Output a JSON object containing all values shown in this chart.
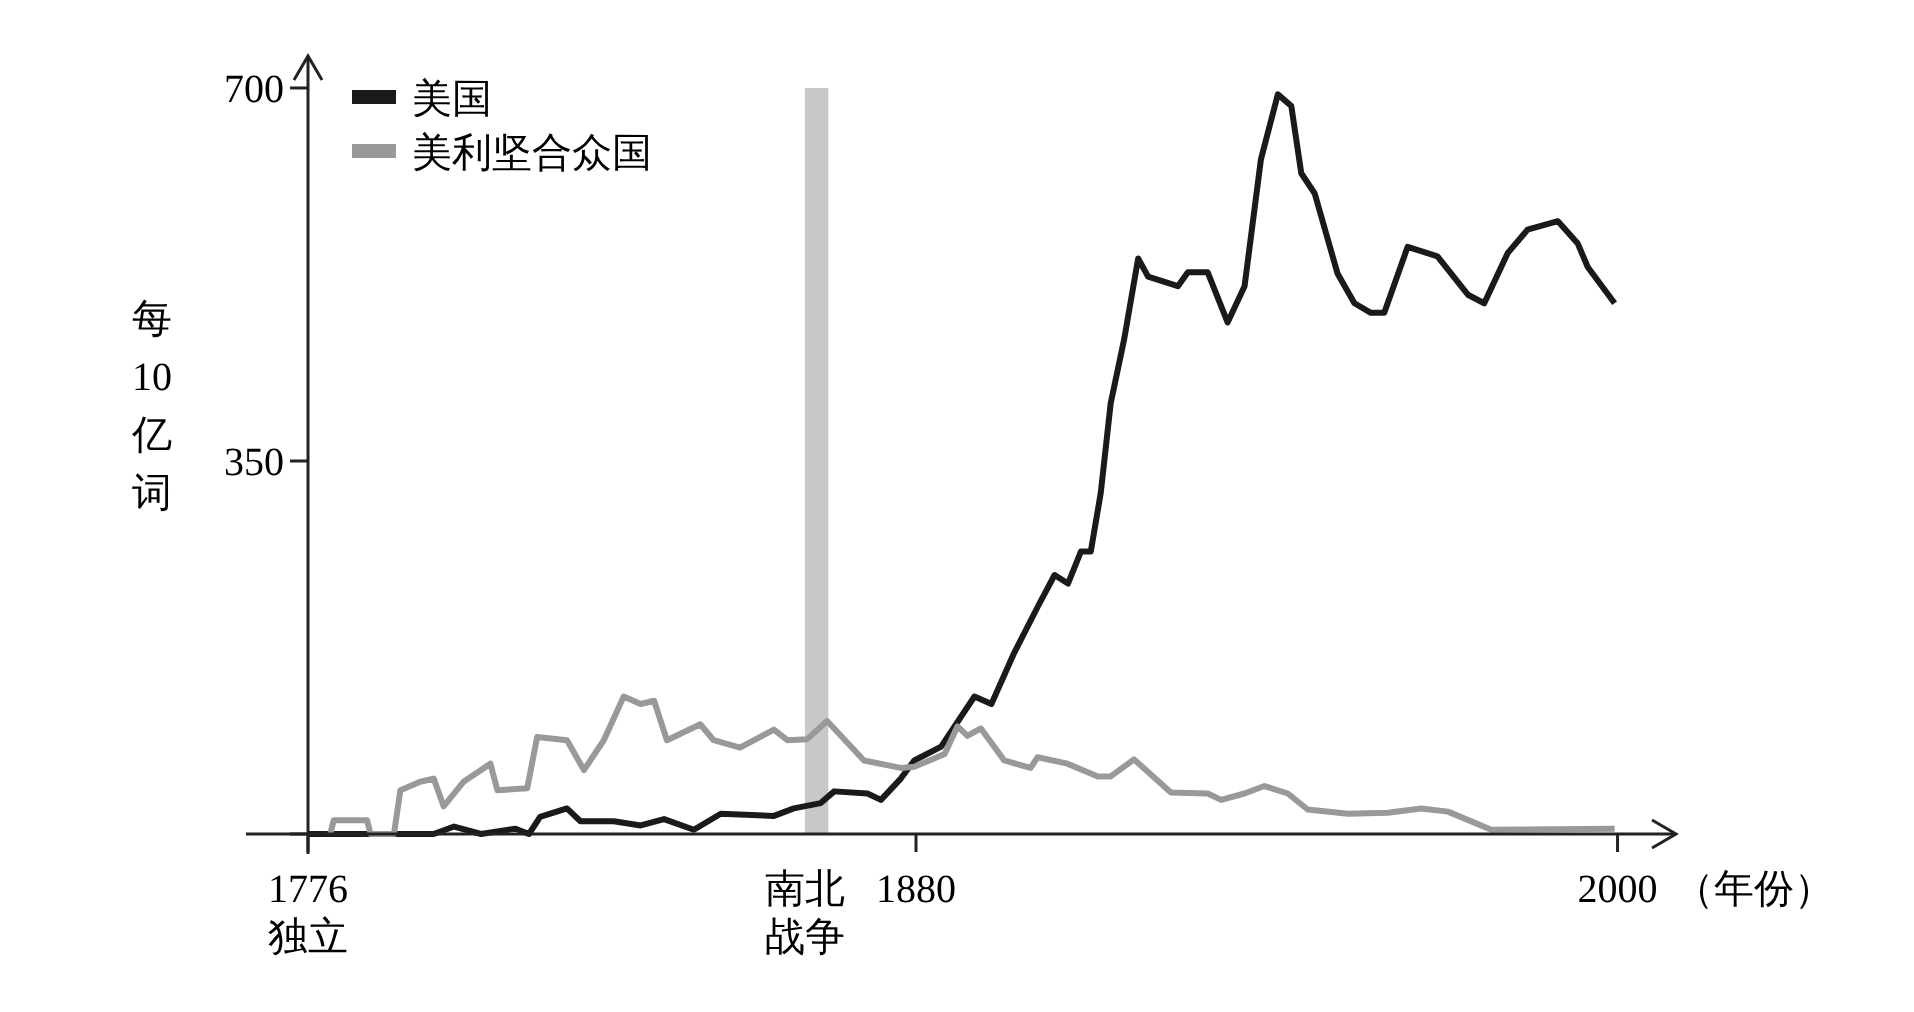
{
  "chart_data": {
    "type": "line",
    "ylabel": "每 10 亿词",
    "xlabel": "（年份）",
    "xlim": [
      1776,
      2010
    ],
    "ylim": [
      0,
      730
    ],
    "xticks": [
      {
        "value": 1776,
        "label": "1776\n独立"
      },
      1880,
      2000
    ],
    "yticks": [
      {
        "value": 0,
        "label": null
      },
      350,
      700
    ],
    "legend": "top left",
    "grid": false,
    "marker": "none",
    "line_style": "solid",
    "bands": [
      {
        "axis": "x",
        "from": 1861,
        "to": 1865,
        "label": "南北战争",
        "color": "#c8c8c8"
      }
    ],
    "series": [
      {
        "name": "美国",
        "color": "#1a1a1a",
        "x": [
          1776,
          1797.5,
          1801,
          1805.6,
          1811.5,
          1813.8,
          1815.7,
          1820.3,
          1822.6,
          1828.3,
          1832.9,
          1836.9,
          1842,
          1846.6,
          1855.7,
          1859.1,
          1863.7,
          1866,
          1871.7,
          1874,
          1877.4,
          1879.7,
          1884.3,
          1890,
          1892.9,
          1896.8,
          1900.8,
          1903.7,
          1906,
          1908.2,
          1909.9,
          1911.6,
          1913.3,
          1915.6,
          1918,
          1919.7,
          1924.8,
          1926.5,
          1929.9,
          1933.3,
          1936.2,
          1939,
          1941.9,
          1944.2,
          1945.9,
          1948.2,
          1952.1,
          1955,
          1957.8,
          1960.1,
          1964.1,
          1969.2,
          1974.4,
          1977.2,
          1981.2,
          1984.6,
          1989.8,
          1993.2,
          1994.9,
          1999.5
        ],
        "values": [
          0,
          0,
          7,
          0,
          5,
          0,
          16,
          24,
          12,
          12,
          8,
          14,
          4,
          19,
          17,
          24,
          29,
          40,
          38,
          32,
          52,
          69,
          82,
          129,
          122,
          170,
          213,
          243,
          235,
          265,
          265,
          320,
          404,
          464,
          540,
          523,
          514,
          527,
          527,
          480,
          514,
          633,
          694,
          683,
          620,
          601,
          526,
          498,
          489,
          489,
          551,
          542,
          506,
          498,
          545,
          567,
          575,
          554,
          532,
          498
        ]
      },
      {
        "name": "美利坚合众国",
        "color": "#999999",
        "x": [
          1779.8,
          1780.4,
          1786.1,
          1786.7,
          1790.7,
          1791.8,
          1795.2,
          1797.5,
          1799.2,
          1802.6,
          1807.2,
          1808.4,
          1813.5,
          1815.2,
          1820.3,
          1823.2,
          1826.6,
          1830,
          1832.9,
          1835.2,
          1837.4,
          1843.1,
          1845.4,
          1849.9,
          1855.7,
          1858,
          1861.4,
          1864.8,
          1871.1,
          1877.4,
          1879.7,
          1884.9,
          1887.1,
          1888.8,
          1891.1,
          1895.1,
          1899.6,
          1900.8,
          1905.9,
          1911.1,
          1913.3,
          1917.3,
          1923.6,
          1929.9,
          1932.2,
          1936.2,
          1939.6,
          1943.6,
          1947,
          1953.9,
          1960.7,
          1966.4,
          1971,
          1978.4,
          1999.5
        ],
        "values": [
          0,
          13,
          13,
          0,
          0,
          41,
          49,
          52,
          26,
          49,
          66,
          41,
          43,
          91,
          88,
          60,
          88,
          129,
          122,
          125,
          88,
          103,
          88,
          81,
          98,
          88,
          89,
          106,
          69,
          62,
          63,
          75,
          101,
          92,
          99,
          69,
          62,
          72,
          66,
          54,
          54,
          70,
          39,
          38,
          32,
          38,
          45,
          38,
          23,
          19,
          20,
          24,
          21,
          4,
          5
        ]
      }
    ]
  }
}
